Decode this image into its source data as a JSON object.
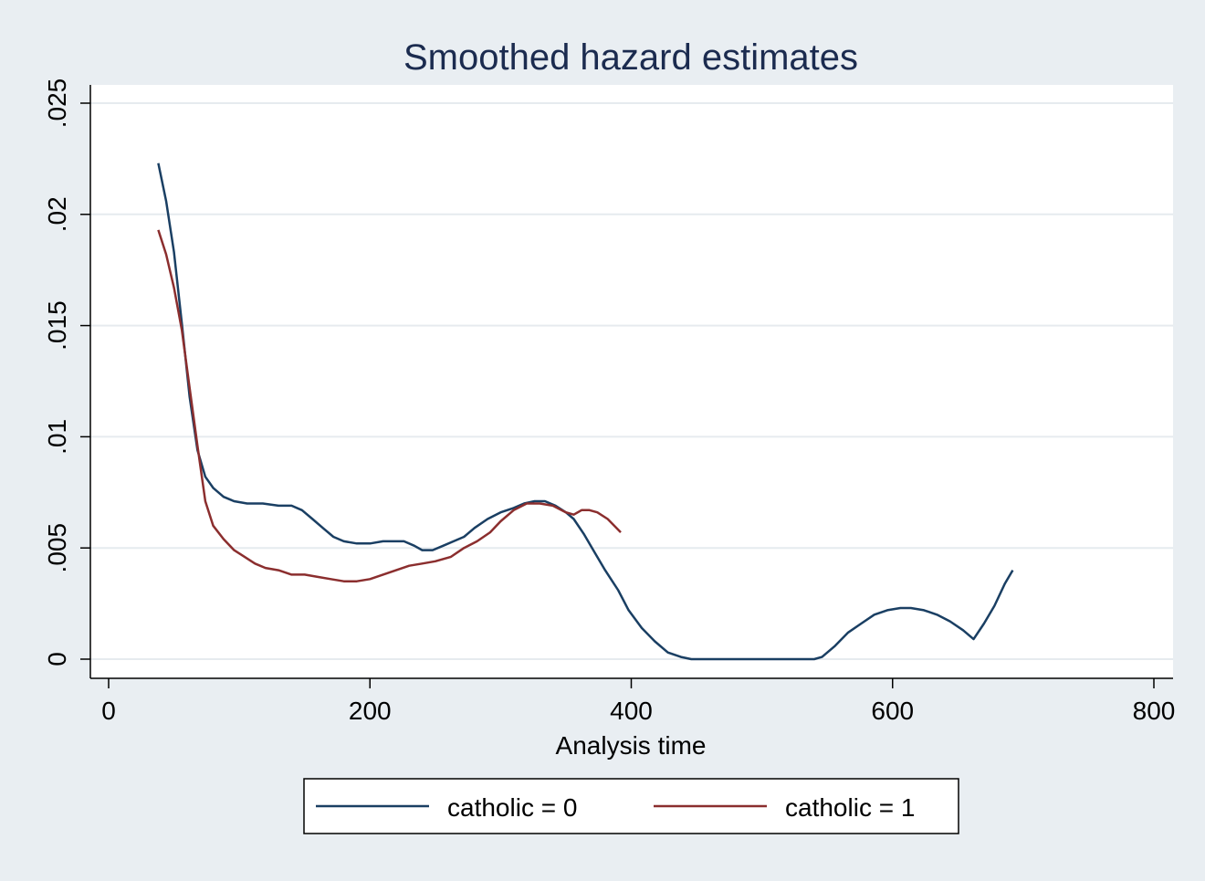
{
  "chart_data": {
    "type": "line",
    "title": "Smoothed hazard estimates",
    "xlabel": "Analysis time",
    "ylabel": "",
    "xlim": [
      0,
      800
    ],
    "ylim": [
      0,
      0.025
    ],
    "x_ticks": [
      0,
      200,
      400,
      600,
      800
    ],
    "x_tick_labels": [
      "0",
      "200",
      "400",
      "600",
      "800"
    ],
    "y_ticks": [
      0,
      0.005,
      0.01,
      0.015,
      0.02,
      0.025
    ],
    "y_tick_labels": [
      "0",
      ".005",
      ".01",
      ".015",
      ".02",
      ".025"
    ],
    "grid": true,
    "legend_position": "bottom",
    "series": [
      {
        "name": "catholic = 0",
        "color": "#1a3f63",
        "x": [
          38,
          44,
          50,
          56,
          62,
          68,
          74,
          80,
          88,
          96,
          106,
          118,
          130,
          140,
          148,
          156,
          164,
          172,
          180,
          190,
          200,
          210,
          218,
          226,
          234,
          240,
          248,
          256,
          264,
          272,
          280,
          290,
          300,
          310,
          318,
          326,
          334,
          342,
          350,
          356,
          364,
          372,
          380,
          390,
          398,
          408,
          418,
          428,
          438,
          446,
          460,
          480,
          500,
          520,
          540,
          546,
          556,
          566,
          576,
          586,
          596,
          606,
          614,
          624,
          634,
          644,
          654,
          662,
          670,
          678,
          686,
          692
        ],
        "y": [
          0.0223,
          0.0206,
          0.0183,
          0.0151,
          0.0118,
          0.0094,
          0.0082,
          0.0077,
          0.0073,
          0.0071,
          0.007,
          0.007,
          0.0069,
          0.0069,
          0.0067,
          0.0063,
          0.0059,
          0.0055,
          0.0053,
          0.0052,
          0.0052,
          0.0053,
          0.0053,
          0.0053,
          0.0051,
          0.0049,
          0.0049,
          0.0051,
          0.0053,
          0.0055,
          0.0059,
          0.0063,
          0.0066,
          0.0068,
          0.007,
          0.0071,
          0.0071,
          0.0069,
          0.0066,
          0.0063,
          0.0056,
          0.0048,
          0.004,
          0.0031,
          0.0022,
          0.0014,
          0.0008,
          0.0003,
          0.0001,
          0.0,
          0.0,
          0.0,
          0.0,
          0.0,
          0.0,
          0.0001,
          0.0006,
          0.0012,
          0.0016,
          0.002,
          0.0022,
          0.0023,
          0.0023,
          0.0022,
          0.002,
          0.0017,
          0.0013,
          0.0009,
          0.0016,
          0.0024,
          0.0034,
          0.004
        ]
      },
      {
        "name": "catholic = 1",
        "color": "#8b2e2e",
        "x": [
          38,
          44,
          50,
          56,
          62,
          68,
          74,
          80,
          88,
          96,
          104,
          112,
          120,
          130,
          140,
          150,
          160,
          170,
          180,
          190,
          200,
          210,
          220,
          230,
          240,
          250,
          262,
          272,
          282,
          292,
          300,
          310,
          320,
          330,
          340,
          350,
          356,
          362,
          368,
          374,
          382,
          392
        ],
        "y": [
          0.0193,
          0.0182,
          0.0167,
          0.0148,
          0.0122,
          0.0096,
          0.0071,
          0.006,
          0.0054,
          0.0049,
          0.0046,
          0.0043,
          0.0041,
          0.004,
          0.0038,
          0.0038,
          0.0037,
          0.0036,
          0.0035,
          0.0035,
          0.0036,
          0.0038,
          0.004,
          0.0042,
          0.0043,
          0.0044,
          0.0046,
          0.005,
          0.0053,
          0.0057,
          0.0062,
          0.0067,
          0.007,
          0.007,
          0.0069,
          0.0066,
          0.0065,
          0.0067,
          0.0067,
          0.0066,
          0.0063,
          0.0057
        ]
      }
    ]
  }
}
